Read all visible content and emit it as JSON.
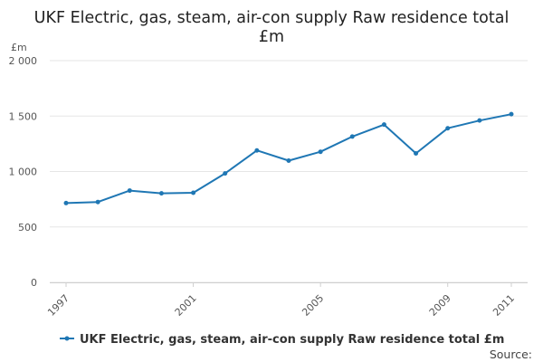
{
  "chart_data": {
    "type": "line",
    "title_line1": "UKF Electric, gas, steam, air-con supply Raw residence total",
    "title_line2": "£m",
    "ylabel": "£m",
    "x": [
      1997,
      1998,
      1999,
      2000,
      2001,
      2002,
      2003,
      2004,
      2005,
      2006,
      2007,
      2008,
      2009,
      2010,
      2011
    ],
    "x_tick_labels": [
      "1997",
      "2001",
      "2005",
      "2009",
      "2011"
    ],
    "y_tick_labels": [
      "0",
      "500",
      "1 000",
      "1 500",
      "2 000"
    ],
    "ylim": [
      0,
      2000
    ],
    "grid": true,
    "series": [
      {
        "name": "UKF Electric, gas, steam, air-con supply Raw residence total £m",
        "color": "#1f77b4",
        "values": [
          715,
          725,
          828,
          803,
          808,
          983,
          1190,
          1098,
          1178,
          1315,
          1423,
          1163,
          1390,
          1460,
          1517
        ]
      }
    ],
    "legend_position": "bottom-left",
    "source_label": "Source:"
  }
}
